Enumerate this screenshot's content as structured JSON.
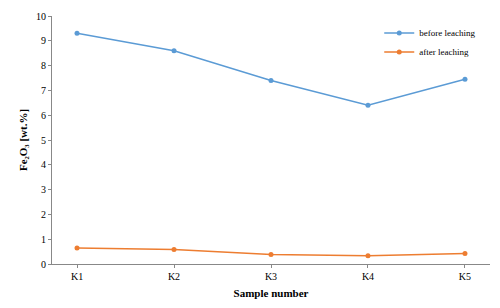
{
  "chart_data": {
    "type": "line",
    "categories": [
      "K1",
      "K2",
      "K3",
      "K4",
      "K5"
    ],
    "series": [
      {
        "name": "before leaching",
        "color": "#5b9bd5",
        "values": [
          9.3,
          8.6,
          7.4,
          6.4,
          7.45
        ]
      },
      {
        "name": "after leaching",
        "color": "#ed7d31",
        "values": [
          0.65,
          0.58,
          0.38,
          0.33,
          0.42
        ]
      }
    ],
    "x_label": "Sample number",
    "y_label": "Fe₂O₃ [wt.%]",
    "ylim": [
      0,
      10
    ],
    "yticks": [
      0,
      1,
      2,
      3,
      4,
      5,
      6,
      7,
      8,
      9,
      10
    ],
    "grid": false,
    "legend": "top-right",
    "marker": "circle",
    "line_style": "solid"
  }
}
